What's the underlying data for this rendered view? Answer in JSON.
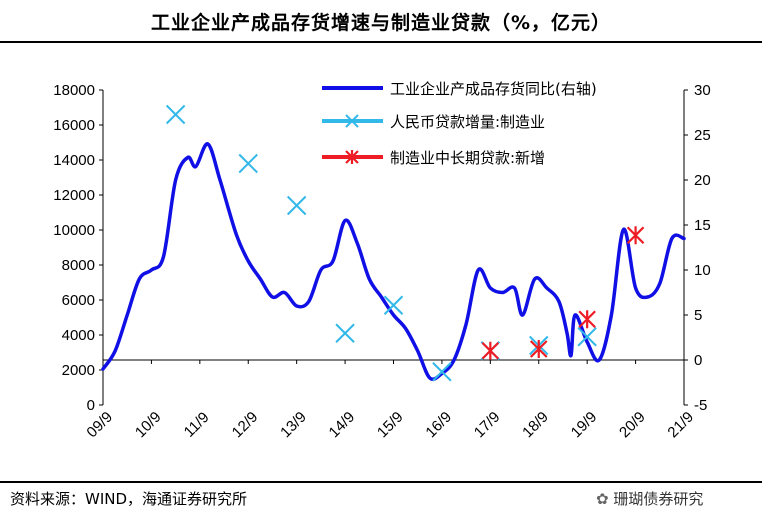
{
  "page": {
    "title": "工业企业产成品存货增速与制造业贷款（%，亿元）",
    "source": "资料来源：WIND，海通证券研究所",
    "watermark": "珊瑚债券研究"
  },
  "colors": {
    "inventory": "#1010e6",
    "rmb_loans": "#33b8ea",
    "mlt_loans": "#ee1c24"
  },
  "chart_data": {
    "type": "line",
    "x_type": "date",
    "xlim": [
      "2009-09",
      "2021-09"
    ],
    "x_ticks": [
      "09/9",
      "10/9",
      "11/9",
      "12/9",
      "13/9",
      "14/9",
      "15/9",
      "16/9",
      "17/9",
      "18/9",
      "19/9",
      "20/9",
      "21/9"
    ],
    "left_axis": {
      "range": [
        0,
        18000
      ],
      "ticks": [
        "0",
        "2000",
        "4000",
        "6000",
        "8000",
        "10000",
        "12000",
        "14000",
        "16000",
        "18000"
      ]
    },
    "right_axis": {
      "range": [
        -5,
        30
      ],
      "ticks": [
        "-5",
        "0",
        "5",
        "10",
        "15",
        "20",
        "25",
        "30"
      ]
    },
    "legend_position": "top-right",
    "series": [
      {
        "name": "工业企业产成品存货同比(右轴)",
        "axis": "right",
        "style": "line",
        "points": [
          [
            "2009-09",
            -1.0
          ],
          [
            "2009-12",
            1.0
          ],
          [
            "2010-03",
            5.0
          ],
          [
            "2010-06",
            9.0
          ],
          [
            "2010-09",
            10.0
          ],
          [
            "2010-12",
            11.5
          ],
          [
            "2011-03",
            20.0
          ],
          [
            "2011-06",
            22.5
          ],
          [
            "2011-08",
            21.5
          ],
          [
            "2011-11",
            24.0
          ],
          [
            "2012-02",
            20.0
          ],
          [
            "2012-06",
            14.0
          ],
          [
            "2012-09",
            11.0
          ],
          [
            "2012-12",
            9.0
          ],
          [
            "2013-03",
            7.0
          ],
          [
            "2013-06",
            7.5
          ],
          [
            "2013-09",
            6.0
          ],
          [
            "2013-12",
            6.5
          ],
          [
            "2014-03",
            10.0
          ],
          [
            "2014-06",
            11.0
          ],
          [
            "2014-09",
            15.5
          ],
          [
            "2014-12",
            13.0
          ],
          [
            "2015-03",
            9.0
          ],
          [
            "2015-06",
            7.0
          ],
          [
            "2015-09",
            5.0
          ],
          [
            "2015-12",
            3.5
          ],
          [
            "2016-03",
            1.0
          ],
          [
            "2016-06",
            -2.0
          ],
          [
            "2016-09",
            -1.5
          ],
          [
            "2016-12",
            0.0
          ],
          [
            "2017-03",
            4.0
          ],
          [
            "2017-06",
            10.0
          ],
          [
            "2017-09",
            8.0
          ],
          [
            "2017-12",
            7.5
          ],
          [
            "2018-03",
            8.0
          ],
          [
            "2018-05",
            5.0
          ],
          [
            "2018-08",
            9.0
          ],
          [
            "2018-11",
            8.0
          ],
          [
            "2019-02",
            6.5
          ],
          [
            "2019-04",
            3.0
          ],
          [
            "2019-05",
            0.5
          ],
          [
            "2019-06",
            5.0
          ],
          [
            "2019-09",
            2.0
          ],
          [
            "2019-12",
            0.0
          ],
          [
            "2020-03",
            5.0
          ],
          [
            "2020-06",
            14.5
          ],
          [
            "2020-09",
            8.0
          ],
          [
            "2020-12",
            7.0
          ],
          [
            "2021-03",
            8.5
          ],
          [
            "2021-06",
            13.5
          ],
          [
            "2021-09",
            13.5
          ]
        ]
      },
      {
        "name": "人民币贷款增量:制造业",
        "axis": "left",
        "style": "marker-x",
        "points": [
          [
            "2011-03",
            16600
          ],
          [
            "2012-09",
            13800
          ],
          [
            "2013-09",
            11400
          ],
          [
            "2014-09",
            4100
          ],
          [
            "2015-09",
            5700
          ],
          [
            "2016-09",
            1900
          ],
          [
            "2017-09",
            3100
          ],
          [
            "2018-09",
            3400
          ],
          [
            "2019-09",
            3900
          ]
        ]
      },
      {
        "name": "制造业中长期贷款:新增",
        "axis": "left",
        "style": "marker-star",
        "points": [
          [
            "2017-09",
            3100
          ],
          [
            "2018-09",
            3200
          ],
          [
            "2019-09",
            4900
          ],
          [
            "2020-09",
            9700
          ]
        ]
      }
    ]
  }
}
